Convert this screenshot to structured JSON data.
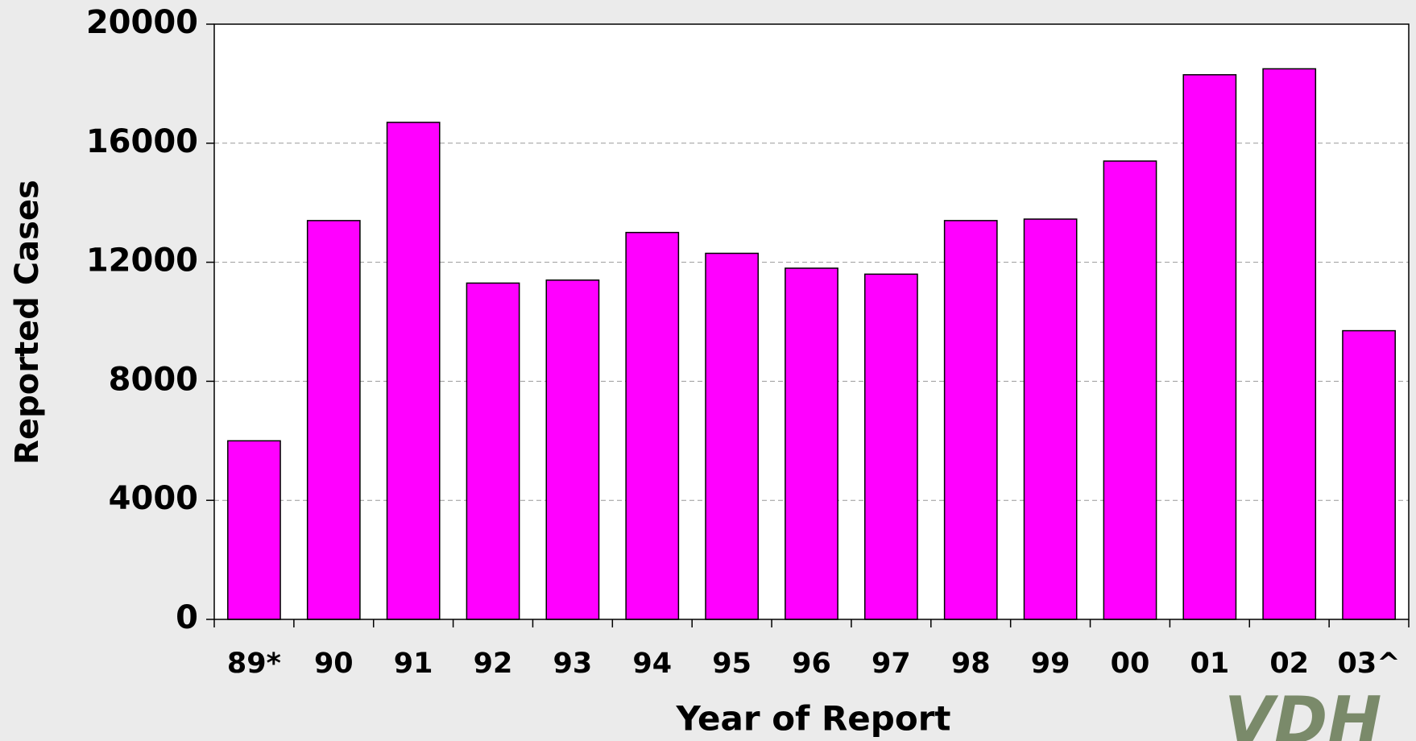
{
  "chart_data": {
    "type": "bar",
    "categories": [
      "89*",
      "90",
      "91",
      "92",
      "93",
      "94",
      "95",
      "96",
      "97",
      "98",
      "99",
      "00",
      "01",
      "02",
      "03^"
    ],
    "values": [
      6000,
      13400,
      16700,
      11300,
      11400,
      13000,
      12300,
      11800,
      11600,
      13400,
      13450,
      15400,
      18300,
      18500,
      9700
    ],
    "color": "#ff00ff",
    "xlabel": "Year of Report",
    "ylabel": "Reported Cases",
    "ylim": [
      0,
      20000
    ],
    "yticks": [
      0,
      4000,
      8000,
      12000,
      16000,
      20000
    ],
    "grid": true
  },
  "logo": "VDH"
}
